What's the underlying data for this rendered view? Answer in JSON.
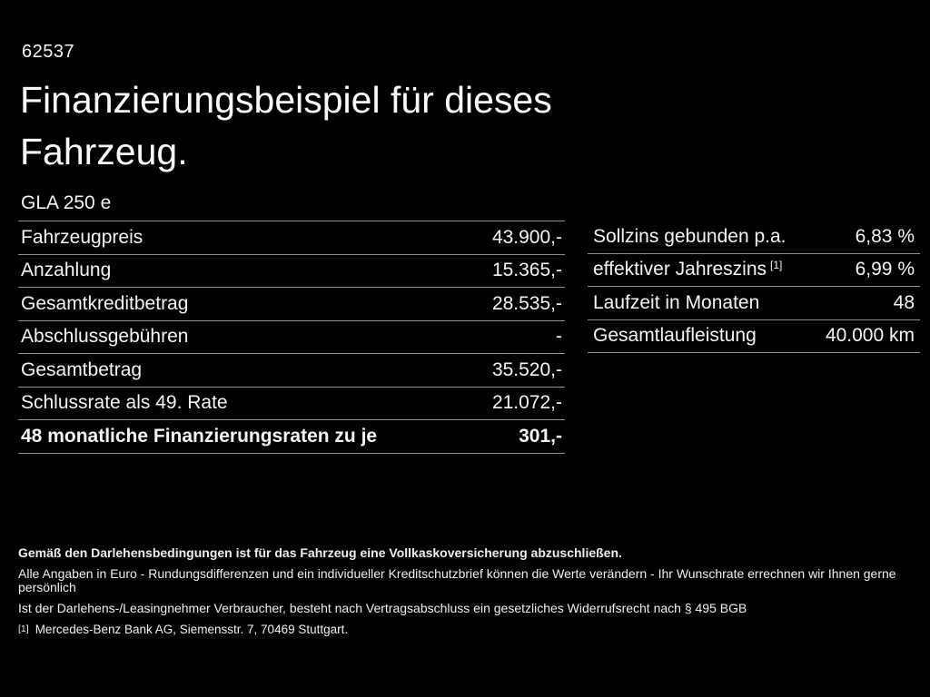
{
  "page": {
    "background_color": "#000000",
    "text_color": "#f4f4f4",
    "divider_color": "#8f8f8f",
    "doc_id": "62537",
    "title_line1": "Finanzierungsbeispiel für dieses",
    "title_line2": "Fahrzeug.",
    "model": "GLA 250 e"
  },
  "left_table": {
    "rows": [
      {
        "label": "Fahrzeugpreis",
        "value": "43.900,-"
      },
      {
        "label": "Anzahlung",
        "value": "15.365,-"
      },
      {
        "label": "Gesamtkreditbetrag",
        "value": "28.535,-"
      },
      {
        "label": "Abschlussgebühren",
        "value": "-"
      },
      {
        "label": "Gesamtbetrag",
        "value": "35.520,-"
      },
      {
        "label": "Schlussrate als 49. Rate",
        "value": "21.072,-"
      },
      {
        "label": "48 monatliche Finanzierungsraten zu je",
        "value": "301,-"
      }
    ]
  },
  "right_table": {
    "rows": [
      {
        "label": "Sollzins gebunden p.a.",
        "sup": "",
        "value": "6,83 %"
      },
      {
        "label": "effektiver Jahreszins",
        "sup": "[1]",
        "value": "6,99 %"
      },
      {
        "label": "Laufzeit in Monaten",
        "sup": "",
        "value": "48"
      },
      {
        "label": "Gesamtlaufleistung",
        "sup": "",
        "value": "40.000 km"
      }
    ]
  },
  "footer": {
    "bold_note": "Gemäß den Darlehensbedingungen ist für das Fahrzeug eine Vollkaskoversicherung abzuschließen.",
    "note2": "Alle Angaben in Euro - Rundungsdifferenzen und ein individueller Kreditschutzbrief können die Werte verändern - Ihr Wunschrate errechnen wir Ihnen gerne persönlich",
    "note3": "Ist der Darlehens-/Leasingnehmer Verbraucher, besteht nach Vertragsabschluss ein gesetzliches Widerrufsrecht nach § 495 BGB",
    "footnote_marker": "[1]",
    "footnote_text": "Mercedes-Benz Bank AG, Siemensstr. 7, 70469 Stuttgart."
  }
}
